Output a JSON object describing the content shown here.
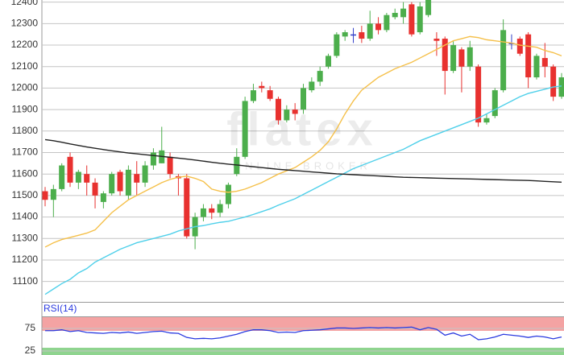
{
  "chart_data": [
    {
      "type": "candlestick",
      "watermark": "flatex",
      "watermark_tagline": "ONLINE BROKER",
      "ylim": [
        11005,
        12410
      ],
      "yticks": [
        11100,
        11200,
        11300,
        11400,
        11500,
        11600,
        11700,
        11800,
        11900,
        12000,
        12100,
        12200,
        12300,
        12400
      ],
      "grid": true,
      "up_color": "#4cae4c",
      "down_color": "#e8312f",
      "doji_color": "#3340c8",
      "open": [
        11520,
        11480,
        11530,
        11680,
        11560,
        11600,
        11560,
        11470,
        11510,
        11610,
        11500,
        11600,
        11560,
        11640,
        11650,
        11680,
        11590,
        11580,
        11310,
        11400,
        11440,
        11420,
        11460,
        11600,
        11680,
        11940,
        12010,
        11990,
        11950,
        11850,
        11900,
        11900,
        11990,
        12030,
        12100,
        12150,
        12240,
        12250,
        12260,
        12230,
        12300,
        12270,
        12330,
        12330,
        12390,
        12260,
        12340,
        12230,
        12230,
        12080,
        12180,
        12100,
        12100,
        11840,
        11870,
        11990,
        12210,
        12230,
        12250,
        12050,
        12140,
        12100,
        11960
      ],
      "high": [
        11540,
        11550,
        11650,
        11700,
        11620,
        11640,
        11580,
        11520,
        11610,
        11620,
        11640,
        11660,
        11660,
        11720,
        11820,
        11700,
        11600,
        11600,
        11420,
        11460,
        11460,
        11480,
        11560,
        11720,
        11960,
        12020,
        12030,
        12010,
        11960,
        11920,
        11930,
        12020,
        12050,
        12100,
        12160,
        12260,
        12270,
        12280,
        12290,
        12360,
        12330,
        12350,
        12370,
        12400,
        12400,
        12400,
        12430,
        12260,
        12240,
        12220,
        12190,
        12220,
        12110,
        11880,
        12000,
        12320,
        12250,
        12240,
        12260,
        12160,
        12210,
        12110,
        12070
      ],
      "low": [
        11450,
        11400,
        11520,
        11540,
        11530,
        11500,
        11440,
        11440,
        11500,
        11500,
        11480,
        11500,
        11540,
        11620,
        11650,
        11580,
        11500,
        11300,
        11250,
        11380,
        11390,
        11400,
        11440,
        11590,
        11670,
        11930,
        11980,
        11940,
        11830,
        11840,
        11850,
        11880,
        11980,
        12010,
        12090,
        12140,
        12220,
        12210,
        12210,
        12220,
        12250,
        12260,
        12320,
        12300,
        12240,
        12250,
        12330,
        12150,
        11970,
        12070,
        11980,
        12080,
        11820,
        11830,
        11860,
        11980,
        12180,
        12150,
        12000,
        12040,
        12050,
        11940,
        11950
      ],
      "close": [
        11480,
        11530,
        11640,
        11560,
        11610,
        11560,
        11500,
        11510,
        11600,
        11520,
        11620,
        11560,
        11640,
        11700,
        11710,
        11600,
        11580,
        11310,
        11400,
        11440,
        11420,
        11460,
        11550,
        11680,
        11940,
        11990,
        12000,
        11950,
        11850,
        11900,
        11880,
        12000,
        12030,
        12080,
        12150,
        12250,
        12260,
        12250,
        12230,
        12300,
        12270,
        12340,
        12350,
        12370,
        12250,
        12380,
        12410,
        12220,
        12080,
        12200,
        12100,
        12190,
        11840,
        11860,
        11990,
        12270,
        12210,
        12160,
        12050,
        12150,
        12100,
        11960,
        12050
      ],
      "lines": [
        {
          "color": "#f5c04a",
          "values": [
            11260,
            11280,
            11295,
            11305,
            11315,
            11325,
            11340,
            11380,
            11420,
            11450,
            11480,
            11500,
            11520,
            11540,
            11560,
            11575,
            11585,
            11590,
            11580,
            11565,
            11530,
            11520,
            11515,
            11520,
            11530,
            11545,
            11560,
            11580,
            11600,
            11615,
            11630,
            11655,
            11680,
            11710,
            11750,
            11810,
            11880,
            11940,
            11990,
            12020,
            12050,
            12070,
            12090,
            12105,
            12120,
            12140,
            12160,
            12180,
            12200,
            12220,
            12230,
            12240,
            12235,
            12225,
            12220,
            12215,
            12210,
            12200,
            12195,
            12190,
            12175,
            12165,
            12150
          ]
        },
        {
          "color": "#4fd0ea",
          "values": [
            11040,
            11065,
            11090,
            11110,
            11140,
            11160,
            11190,
            11210,
            11230,
            11250,
            11265,
            11280,
            11290,
            11300,
            11310,
            11320,
            11335,
            11345,
            11355,
            11360,
            11368,
            11375,
            11380,
            11390,
            11400,
            11412,
            11425,
            11438,
            11455,
            11470,
            11485,
            11505,
            11525,
            11545,
            11565,
            11585,
            11605,
            11625,
            11640,
            11655,
            11670,
            11685,
            11700,
            11715,
            11735,
            11755,
            11770,
            11785,
            11800,
            11815,
            11830,
            11845,
            11860,
            11880,
            11900,
            11920,
            11940,
            11960,
            11975,
            11985,
            11995,
            12005,
            12010
          ]
        },
        {
          "color": "#222222",
          "values": [
            11760,
            11755,
            11748,
            11740,
            11733,
            11726,
            11720,
            11714,
            11708,
            11703,
            11698,
            11694,
            11690,
            11686,
            11682,
            11678,
            11674,
            11670,
            11665,
            11660,
            11655,
            11650,
            11646,
            11642,
            11638,
            11634,
            11630,
            11626,
            11622,
            11619,
            11616,
            11613,
            11610,
            11607,
            11604,
            11601,
            11599,
            11597,
            11595,
            11593,
            11591,
            11589,
            11587,
            11585,
            11584,
            11583,
            11582,
            11581,
            11580,
            11579,
            11578,
            11577,
            11576,
            11575,
            11574,
            11573,
            11572,
            11571,
            11570,
            11568,
            11566,
            11564,
            11562
          ]
        }
      ]
    },
    {
      "type": "line",
      "title": "RSI(14)",
      "ylim": [
        16,
        100
      ],
      "yticks": [
        75,
        25
      ],
      "color": "#2b3be0",
      "values": [
        70,
        70,
        72,
        68,
        70,
        66,
        65,
        64,
        66,
        65,
        67,
        64,
        66,
        68,
        69,
        65,
        64,
        55,
        52,
        53,
        52,
        54,
        58,
        62,
        68,
        72,
        72,
        70,
        66,
        67,
        66,
        70,
        71,
        72,
        74,
        76,
        76,
        75,
        76,
        77,
        76,
        77,
        76,
        77,
        78,
        72,
        77,
        73,
        60,
        65,
        58,
        62,
        50,
        52,
        56,
        62,
        60,
        58,
        55,
        58,
        56,
        52,
        56
      ]
    }
  ]
}
